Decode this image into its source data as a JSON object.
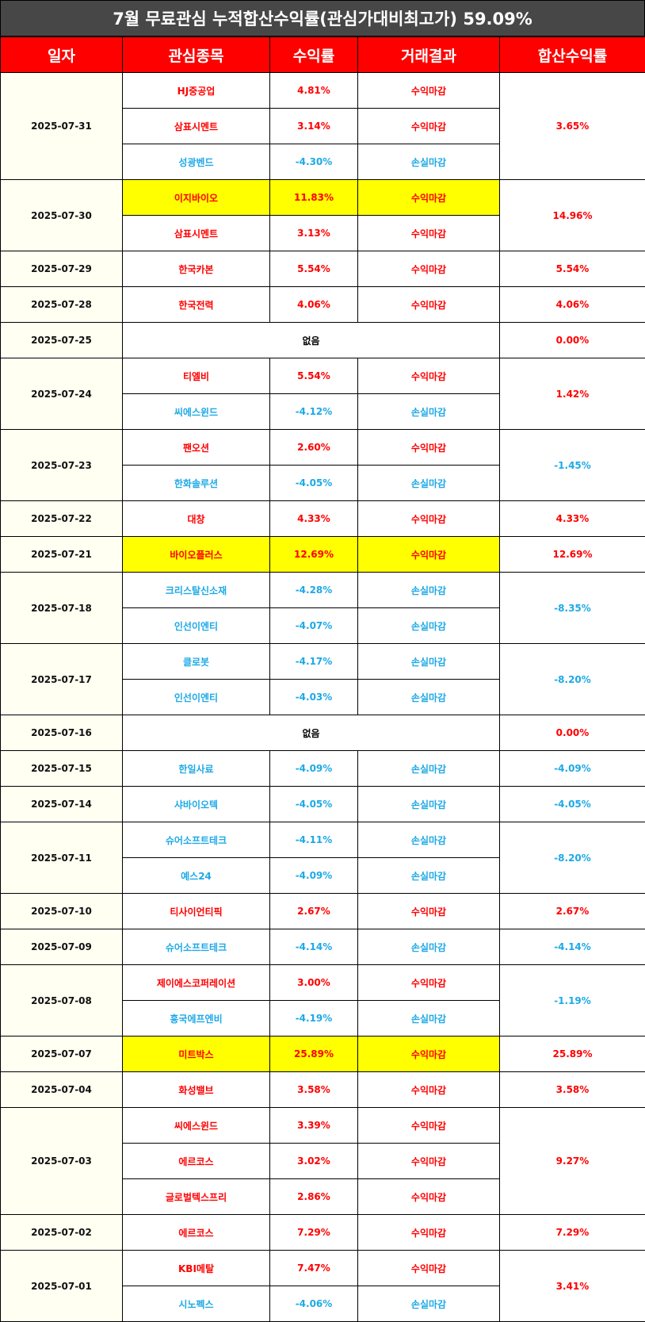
{
  "title": "7월 무료관심 누적합산수익률(관심가대비최고가) 59.09%",
  "headers": [
    "일자",
    "관심종목",
    "수익률",
    "거래결과",
    "합산수익률"
  ],
  "colors": {
    "positive": "#ff0000",
    "negative": "#1ea9e6",
    "highlight": "#ffff00",
    "header": "#ff0000",
    "title_bg": "#474747"
  },
  "days": [
    {
      "date": "2025-07-31",
      "total": "3.65%",
      "total_sign": "pos",
      "items": [
        {
          "name": "HJ중공업",
          "rate": "4.81%",
          "result": "수익마감",
          "sign": "pos",
          "highlight": false
        },
        {
          "name": "삼표시멘트",
          "rate": "3.14%",
          "result": "수익마감",
          "sign": "pos",
          "highlight": false
        },
        {
          "name": "성광벤드",
          "rate": "-4.30%",
          "result": "손실마감",
          "sign": "neg",
          "highlight": false
        }
      ]
    },
    {
      "date": "2025-07-30",
      "total": "14.96%",
      "total_sign": "pos",
      "items": [
        {
          "name": "이지바이오",
          "rate": "11.83%",
          "result": "수익마감",
          "sign": "pos",
          "highlight": true
        },
        {
          "name": "삼표시멘트",
          "rate": "3.13%",
          "result": "수익마감",
          "sign": "pos",
          "highlight": false
        }
      ]
    },
    {
      "date": "2025-07-29",
      "total": "5.54%",
      "total_sign": "pos",
      "items": [
        {
          "name": "한국카본",
          "rate": "5.54%",
          "result": "수익마감",
          "sign": "pos",
          "highlight": false
        }
      ]
    },
    {
      "date": "2025-07-28",
      "total": "4.06%",
      "total_sign": "pos",
      "items": [
        {
          "name": "한국전력",
          "rate": "4.06%",
          "result": "수익마감",
          "sign": "pos",
          "highlight": false
        }
      ]
    },
    {
      "date": "2025-07-25",
      "total": "0.00%",
      "total_sign": "pos",
      "empty": "없음",
      "items": []
    },
    {
      "date": "2025-07-24",
      "total": "1.42%",
      "total_sign": "pos",
      "items": [
        {
          "name": "티엘비",
          "rate": "5.54%",
          "result": "수익마감",
          "sign": "pos",
          "highlight": false
        },
        {
          "name": "씨에스윈드",
          "rate": "-4.12%",
          "result": "손실마감",
          "sign": "neg",
          "highlight": false
        }
      ]
    },
    {
      "date": "2025-07-23",
      "total": "-1.45%",
      "total_sign": "neg",
      "items": [
        {
          "name": "팬오션",
          "rate": "2.60%",
          "result": "수익마감",
          "sign": "pos",
          "highlight": false
        },
        {
          "name": "한화솔루션",
          "rate": "-4.05%",
          "result": "손실마감",
          "sign": "neg",
          "highlight": false
        }
      ]
    },
    {
      "date": "2025-07-22",
      "total": "4.33%",
      "total_sign": "pos",
      "items": [
        {
          "name": "대창",
          "rate": "4.33%",
          "result": "수익마감",
          "sign": "pos",
          "highlight": false
        }
      ]
    },
    {
      "date": "2025-07-21",
      "total": "12.69%",
      "total_sign": "pos",
      "items": [
        {
          "name": "바이오플러스",
          "rate": "12.69%",
          "result": "수익마감",
          "sign": "pos",
          "highlight": true
        }
      ]
    },
    {
      "date": "2025-07-18",
      "total": "-8.35%",
      "total_sign": "neg",
      "items": [
        {
          "name": "크리스탈신소재",
          "rate": "-4.28%",
          "result": "손실마감",
          "sign": "neg",
          "highlight": false
        },
        {
          "name": "인선이엔티",
          "rate": "-4.07%",
          "result": "손실마감",
          "sign": "neg",
          "highlight": false
        }
      ]
    },
    {
      "date": "2025-07-17",
      "total": "-8.20%",
      "total_sign": "neg",
      "items": [
        {
          "name": "클로봇",
          "rate": "-4.17%",
          "result": "손실마감",
          "sign": "neg",
          "highlight": false
        },
        {
          "name": "인선이엔티",
          "rate": "-4.03%",
          "result": "손실마감",
          "sign": "neg",
          "highlight": false
        }
      ]
    },
    {
      "date": "2025-07-16",
      "total": "0.00%",
      "total_sign": "pos",
      "empty": "없음",
      "items": []
    },
    {
      "date": "2025-07-15",
      "total": "-4.09%",
      "total_sign": "neg",
      "items": [
        {
          "name": "한일사료",
          "rate": "-4.09%",
          "result": "손실마감",
          "sign": "neg",
          "highlight": false
        }
      ]
    },
    {
      "date": "2025-07-14",
      "total": "-4.05%",
      "total_sign": "neg",
      "items": [
        {
          "name": "샤바이오텍",
          "rate": "-4.05%",
          "result": "손실마감",
          "sign": "neg",
          "highlight": false
        }
      ]
    },
    {
      "date": "2025-07-11",
      "total": "-8.20%",
      "total_sign": "neg",
      "items": [
        {
          "name": "슈어소프트테크",
          "rate": "-4.11%",
          "result": "손실마감",
          "sign": "neg",
          "highlight": false
        },
        {
          "name": "예스24",
          "rate": "-4.09%",
          "result": "손실마감",
          "sign": "neg",
          "highlight": false
        }
      ]
    },
    {
      "date": "2025-07-10",
      "total": "2.67%",
      "total_sign": "pos",
      "items": [
        {
          "name": "티사이언티픽",
          "rate": "2.67%",
          "result": "수익마감",
          "sign": "pos",
          "highlight": false
        }
      ]
    },
    {
      "date": "2025-07-09",
      "total": "-4.14%",
      "total_sign": "neg",
      "items": [
        {
          "name": "슈어소프트테크",
          "rate": "-4.14%",
          "result": "손실마감",
          "sign": "neg",
          "highlight": false
        }
      ]
    },
    {
      "date": "2025-07-08",
      "total": "-1.19%",
      "total_sign": "neg",
      "items": [
        {
          "name": "제이에스코퍼레이션",
          "rate": "3.00%",
          "result": "수익마감",
          "sign": "pos",
          "highlight": false
        },
        {
          "name": "흥국에프엔비",
          "rate": "-4.19%",
          "result": "손실마감",
          "sign": "neg",
          "highlight": false
        }
      ]
    },
    {
      "date": "2025-07-07",
      "total": "25.89%",
      "total_sign": "pos",
      "items": [
        {
          "name": "미트박스",
          "rate": "25.89%",
          "result": "수익마감",
          "sign": "pos",
          "highlight": true
        }
      ]
    },
    {
      "date": "2025-07-04",
      "total": "3.58%",
      "total_sign": "pos",
      "items": [
        {
          "name": "화성밸브",
          "rate": "3.58%",
          "result": "수익마감",
          "sign": "pos",
          "highlight": false
        }
      ]
    },
    {
      "date": "2025-07-03",
      "total": "9.27%",
      "total_sign": "pos",
      "items": [
        {
          "name": "씨에스윈드",
          "rate": "3.39%",
          "result": "수익마감",
          "sign": "pos",
          "highlight": false
        },
        {
          "name": "에르코스",
          "rate": "3.02%",
          "result": "수익마감",
          "sign": "pos",
          "highlight": false
        },
        {
          "name": "글로벌텍스프리",
          "rate": "2.86%",
          "result": "수익마감",
          "sign": "pos",
          "highlight": false
        }
      ]
    },
    {
      "date": "2025-07-02",
      "total": "7.29%",
      "total_sign": "pos",
      "items": [
        {
          "name": "에르코스",
          "rate": "7.29%",
          "result": "수익마감",
          "sign": "pos",
          "highlight": false
        }
      ]
    },
    {
      "date": "2025-07-01",
      "total": "3.41%",
      "total_sign": "pos",
      "items": [
        {
          "name": "KBI메탈",
          "rate": "7.47%",
          "result": "수익마감",
          "sign": "pos",
          "highlight": false
        },
        {
          "name": "시노펙스",
          "rate": "-4.06%",
          "result": "손실마감",
          "sign": "neg",
          "highlight": false
        }
      ]
    }
  ]
}
